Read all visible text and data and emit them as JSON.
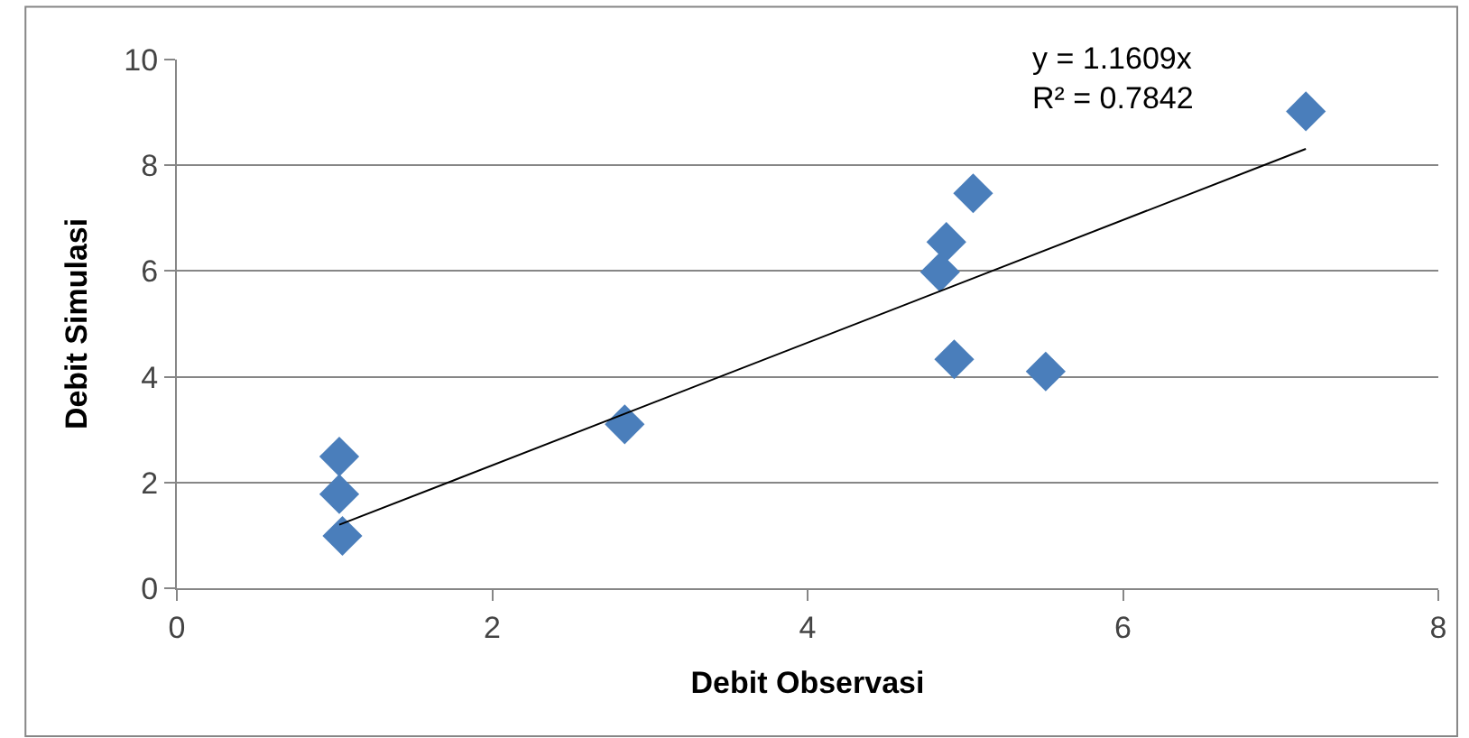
{
  "chart_data": {
    "type": "scatter",
    "xlabel": "Debit Observasi",
    "ylabel": "Debit Simulasi",
    "xlim": [
      0,
      8
    ],
    "xticks": [
      0,
      2,
      4,
      6,
      8
    ],
    "ylim": [
      0,
      10
    ],
    "yticks": [
      0,
      2,
      4,
      6,
      8,
      10
    ],
    "grid": "y",
    "series": [
      {
        "marker": "diamond",
        "color": "#4a7ebb",
        "x": [
          1.05,
          1.03,
          1.03,
          2.84,
          5.05,
          4.88,
          4.84,
          4.93,
          5.51,
          7.16
        ],
        "values": [
          0.99,
          1.78,
          2.49,
          3.1,
          7.47,
          6.55,
          5.98,
          4.33,
          4.1,
          9.02
        ]
      },
      {
        "type": "line",
        "marker": "none",
        "color": "#000000",
        "x": [
          1.03,
          7.16
        ],
        "values": [
          1.2,
          8.31
        ]
      }
    ],
    "annotations": [
      "y = 1.1609x",
      "R² = 0.7842"
    ]
  }
}
